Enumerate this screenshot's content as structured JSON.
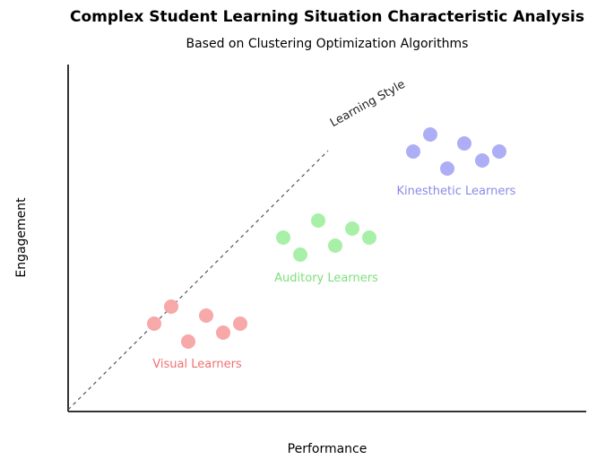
{
  "title": "Complex Student Learning Situation Characteristic Analysis",
  "subtitle": "Based on Clustering Optimization Algorithms",
  "axes": {
    "x_label": "Performance",
    "y_label": "Engagement",
    "color": "#333333"
  },
  "trend_line": {
    "label": "Learning Style",
    "color": "#555555"
  },
  "clusters": [
    {
      "id": "visual",
      "label": "Visual Learners",
      "color": "#f7a8a8",
      "label_color": "#f07070",
      "point_count": 6
    },
    {
      "id": "auditory",
      "label": "Auditory Learners",
      "color": "#a8f0a8",
      "label_color": "#7de07d",
      "point_count": 6
    },
    {
      "id": "kinesthetic",
      "label": "Kinesthetic Learners",
      "color": "#aeaef7",
      "label_color": "#8a8ae8",
      "point_count": 6
    }
  ]
}
